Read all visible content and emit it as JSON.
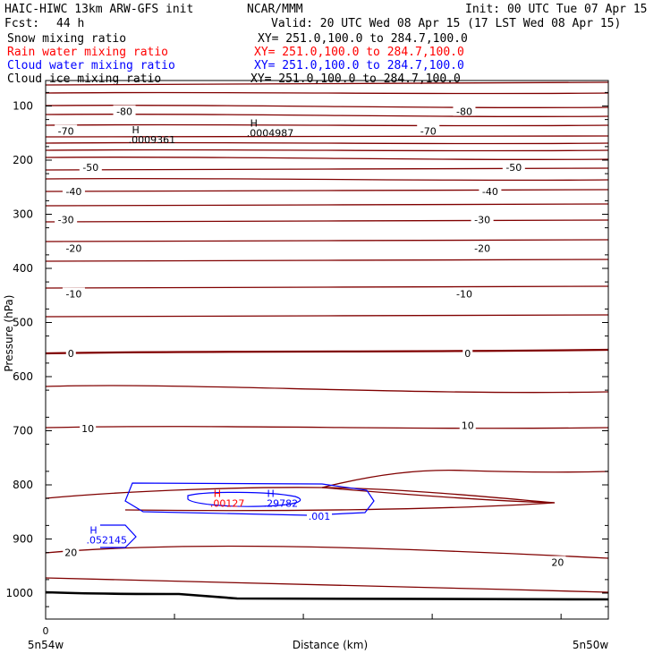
{
  "header": {
    "title": "HAIC-HIWC 13km ARW-GFS init",
    "org": "NCAR/MMM",
    "init": "Init: 00 UTC Tue 07 Apr 15",
    "fcst_label": "Fcst:",
    "fcst_value": "44 h",
    "valid": "Valid: 20 UTC Wed 08 Apr 15 (17 LST Wed 08 Apr 15)"
  },
  "fields": [
    {
      "name": "Snow mixing ratio",
      "xy": "XY= 251.0,100.0 to 284.7,100.0",
      "color": "#000000"
    },
    {
      "name": "Rain water mixing ratio",
      "xy": "XY= 251.0,100.0 to 284.7,100.0",
      "color": "#ff0000"
    },
    {
      "name": "Cloud water mixing ratio",
      "xy": "XY= 251.0,100.0 to 284.7,100.0",
      "color": "#0000ff"
    },
    {
      "name": "Cloud ice mixing ratio",
      "xy": "XY= 251.0,100.0 to 284.7,100.0",
      "color": "#000000"
    }
  ],
  "chart_data": {
    "type": "cross-section contour",
    "xlabel": "Distance (km)",
    "ylabel": "Pressure (hPa)",
    "x_start_label": "0",
    "x_left_label": "5n54w",
    "x_right_label": "5n50w",
    "ylim": [
      1050,
      70
    ],
    "y_ticks": [
      100,
      200,
      300,
      400,
      500,
      600,
      700,
      800,
      900,
      1000
    ],
    "x_fraction_ticks": [
      0.0,
      0.229,
      0.458,
      0.687,
      0.916
    ],
    "temperature_contour_color": "#800000",
    "temperature_labels": [
      {
        "text": "-80",
        "x": 0.14,
        "p": 110
      },
      {
        "text": "-80",
        "x": 0.744,
        "p": 110
      },
      {
        "text": "-70",
        "x": 0.036,
        "p": 146
      },
      {
        "text": "-70",
        "x": 0.68,
        "p": 146
      },
      {
        "text": "-50",
        "x": 0.08,
        "p": 213
      },
      {
        "text": "-50",
        "x": 0.832,
        "p": 213
      },
      {
        "text": "-40",
        "x": 0.05,
        "p": 258
      },
      {
        "text": "-40",
        "x": 0.79,
        "p": 258
      },
      {
        "text": "-30",
        "x": 0.036,
        "p": 310
      },
      {
        "text": "-30",
        "x": 0.776,
        "p": 310
      },
      {
        "text": "-20",
        "x": 0.05,
        "p": 363
      },
      {
        "text": "-20",
        "x": 0.776,
        "p": 363
      },
      {
        "text": "-10",
        "x": 0.05,
        "p": 447
      },
      {
        "text": "-10",
        "x": 0.744,
        "p": 447
      },
      {
        "text": "0",
        "x": 0.045,
        "p": 557
      },
      {
        "text": "0",
        "x": 0.75,
        "p": 557
      },
      {
        "text": "10",
        "x": 0.075,
        "p": 696
      },
      {
        "text": "10",
        "x": 0.75,
        "p": 690
      },
      {
        "text": "20",
        "x": 0.045,
        "p": 925
      },
      {
        "text": "20",
        "x": 0.91,
        "p": 943
      }
    ],
    "highs": [
      {
        "label": "H",
        "value": ".0009361",
        "x": 0.16,
        "p": 150,
        "color": "#000000"
      },
      {
        "label": "H",
        "value": ".0004987",
        "x": 0.37,
        "p": 138,
        "color": "#000000"
      },
      {
        "label": "H",
        "value": ".00127",
        "x": 0.305,
        "p": 822,
        "color": "#ff0000"
      },
      {
        "label": "H",
        "value": ".29782",
        "x": 0.4,
        "p": 822,
        "color": "#0000ff"
      },
      {
        "label": "H",
        "value": ".052145",
        "x": 0.085,
        "p": 890,
        "color": "#0000ff"
      }
    ],
    "cloud_water_contour_label": ".001"
  }
}
